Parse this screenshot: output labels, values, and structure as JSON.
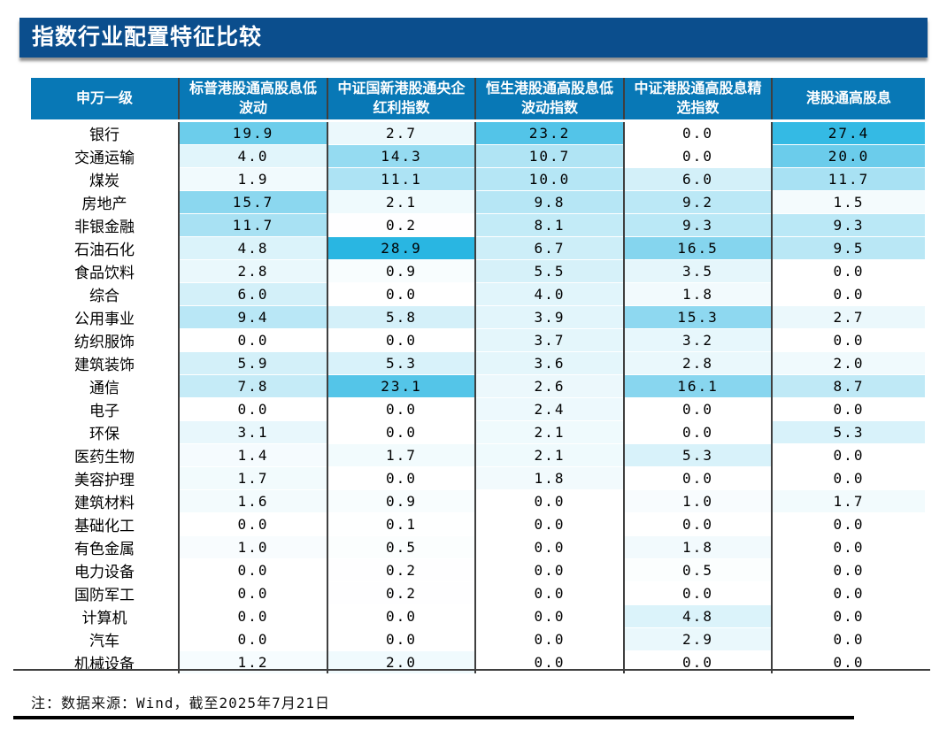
{
  "title": "指数行业配置特征比较",
  "note": "注：数据来源：Wind，截至2025年7月21日",
  "colors": {
    "title_bar_bg": "#0B4E8D",
    "title_text": "#FFFFFF",
    "header_bg": "#0878B6",
    "header_text": "#FFFFFF",
    "grid_line": "#3F3F3F",
    "heat_min_color": "#FFFFFF",
    "heat_max_color": "#29B6E2",
    "bottom_rule": "#000000"
  },
  "chart_data": {
    "type": "heatmap",
    "title": "指数行业配置特征比较",
    "row_header_label": "申万一级",
    "columns": [
      "标普港股通高股息低波动",
      "中证国新港股通央企红利指数",
      "恒生港股通高股息低波动指数",
      "中证港股通高股息精选指数",
      "港股通高股息"
    ],
    "value_range": [
      0,
      28.9
    ],
    "rows": [
      {
        "industry": "银行",
        "values": [
          19.9,
          2.7,
          23.2,
          0.0,
          27.4
        ]
      },
      {
        "industry": "交通运输",
        "values": [
          4.0,
          14.3,
          10.7,
          0.0,
          20.0
        ]
      },
      {
        "industry": "煤炭",
        "values": [
          1.9,
          11.1,
          10.0,
          6.0,
          11.7
        ]
      },
      {
        "industry": "房地产",
        "values": [
          15.7,
          2.1,
          9.8,
          9.2,
          1.5
        ]
      },
      {
        "industry": "非银金融",
        "values": [
          11.7,
          0.2,
          8.1,
          9.3,
          9.3
        ]
      },
      {
        "industry": "石油石化",
        "values": [
          4.8,
          28.9,
          6.7,
          16.5,
          9.5
        ]
      },
      {
        "industry": "食品饮料",
        "values": [
          2.8,
          0.9,
          5.5,
          3.5,
          0.0
        ]
      },
      {
        "industry": "综合",
        "values": [
          6.0,
          0.0,
          4.0,
          1.8,
          0.0
        ]
      },
      {
        "industry": "公用事业",
        "values": [
          9.4,
          5.8,
          3.9,
          15.3,
          2.7
        ]
      },
      {
        "industry": "纺织服饰",
        "values": [
          0.0,
          0.0,
          3.7,
          3.2,
          0.0
        ]
      },
      {
        "industry": "建筑装饰",
        "values": [
          5.9,
          5.3,
          3.6,
          2.8,
          2.0
        ]
      },
      {
        "industry": "通信",
        "values": [
          7.8,
          23.1,
          2.6,
          16.1,
          8.7
        ]
      },
      {
        "industry": "电子",
        "values": [
          0.0,
          0.0,
          2.4,
          0.0,
          0.0
        ]
      },
      {
        "industry": "环保",
        "values": [
          3.1,
          0.0,
          2.1,
          0.0,
          5.3
        ]
      },
      {
        "industry": "医药生物",
        "values": [
          1.4,
          1.7,
          2.1,
          5.3,
          0.0
        ]
      },
      {
        "industry": "美容护理",
        "values": [
          1.7,
          0.0,
          1.8,
          0.0,
          0.0
        ]
      },
      {
        "industry": "建筑材料",
        "values": [
          1.6,
          0.9,
          0.0,
          1.0,
          1.7
        ]
      },
      {
        "industry": "基础化工",
        "values": [
          0.0,
          0.1,
          0.0,
          0.0,
          0.0
        ]
      },
      {
        "industry": "有色金属",
        "values": [
          1.0,
          0.5,
          0.0,
          1.8,
          0.0
        ]
      },
      {
        "industry": "电力设备",
        "values": [
          0.0,
          0.2,
          0.0,
          0.5,
          0.0
        ]
      },
      {
        "industry": "国防军工",
        "values": [
          0.0,
          0.2,
          0.0,
          0.0,
          0.0
        ]
      },
      {
        "industry": "计算机",
        "values": [
          0.0,
          0.0,
          0.0,
          4.8,
          0.0
        ]
      },
      {
        "industry": "汽车",
        "values": [
          0.0,
          0.0,
          0.0,
          2.9,
          0.0
        ]
      },
      {
        "industry": "机械设备",
        "values": [
          1.2,
          2.0,
          0.0,
          0.0,
          0.0
        ]
      }
    ]
  }
}
